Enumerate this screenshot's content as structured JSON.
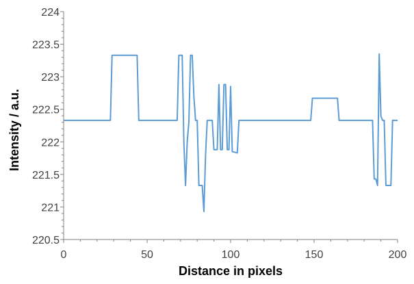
{
  "chart_data": {
    "type": "line",
    "xlabel": "Distance in pixels",
    "ylabel": "Intensity / a.u.",
    "xlim": [
      0,
      200
    ],
    "ylim": [
      220.5,
      224
    ],
    "x_ticks": [
      0,
      50,
      100,
      150,
      200
    ],
    "y_ticks": [
      220.5,
      221,
      221.5,
      222,
      222.5,
      223,
      223.5,
      224
    ],
    "x_tick_labels": [
      "0",
      "50",
      "100",
      "150",
      "200"
    ],
    "y_tick_labels": [
      "220.5",
      "221",
      "221.5",
      "222",
      "222.5",
      "223",
      "223.5",
      "224"
    ],
    "grid": false,
    "legend": "none",
    "series": [
      {
        "color": "#5b9bd5",
        "points": [
          [
            0,
            222.33
          ],
          [
            28,
            222.33
          ],
          [
            29,
            223.33
          ],
          [
            44,
            223.33
          ],
          [
            45,
            222.33
          ],
          [
            68,
            222.33
          ],
          [
            69,
            223.33
          ],
          [
            71,
            223.33
          ],
          [
            72,
            222.0
          ],
          [
            73,
            221.33
          ],
          [
            74,
            222.0
          ],
          [
            75,
            222.3
          ],
          [
            76,
            223.33
          ],
          [
            77,
            223.33
          ],
          [
            78,
            222.7
          ],
          [
            79,
            222.33
          ],
          [
            80,
            222.33
          ],
          [
            81,
            221.33
          ],
          [
            83,
            221.33
          ],
          [
            84,
            220.93
          ],
          [
            85,
            221.8
          ],
          [
            86,
            222.33
          ],
          [
            89,
            222.33
          ],
          [
            90,
            221.88
          ],
          [
            92,
            221.88
          ],
          [
            93,
            222.88
          ],
          [
            94,
            221.88
          ],
          [
            95,
            221.88
          ],
          [
            96,
            222.88
          ],
          [
            97,
            222.88
          ],
          [
            98,
            221.88
          ],
          [
            99,
            221.88
          ],
          [
            100,
            222.85
          ],
          [
            101,
            221.85
          ],
          [
            104,
            221.83
          ],
          [
            105,
            222.33
          ],
          [
            148,
            222.33
          ],
          [
            149,
            222.67
          ],
          [
            164,
            222.67
          ],
          [
            165,
            222.33
          ],
          [
            185,
            222.33
          ],
          [
            186,
            221.43
          ],
          [
            187,
            221.43
          ],
          [
            188,
            221.33
          ],
          [
            189,
            223.35
          ],
          [
            190,
            222.4
          ],
          [
            191,
            222.33
          ],
          [
            192,
            222.33
          ],
          [
            193,
            221.33
          ],
          [
            196,
            221.33
          ],
          [
            197,
            222.33
          ],
          [
            200,
            222.33
          ]
        ]
      }
    ]
  }
}
